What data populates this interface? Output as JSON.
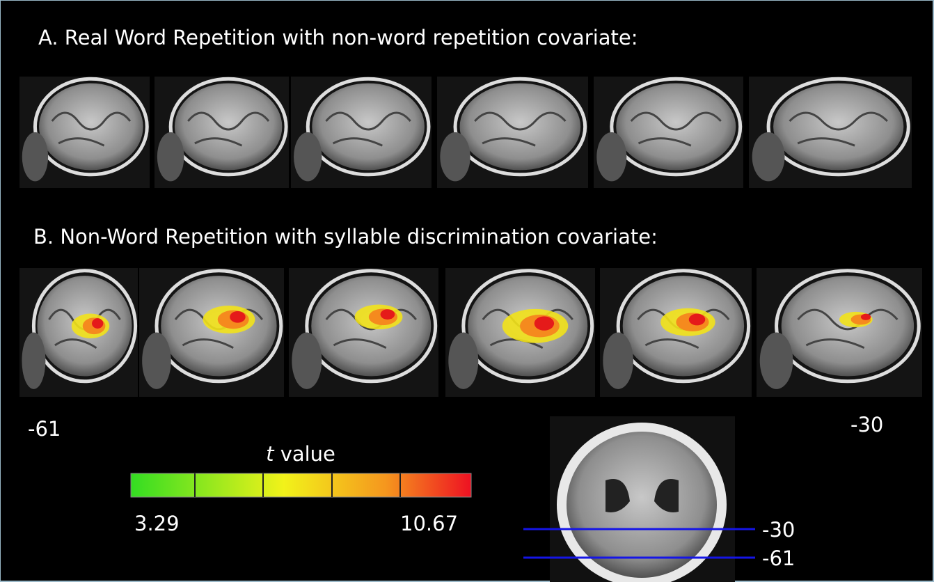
{
  "panel_a": {
    "title": "A.  Real Word Repetition with non-word repetition covariate:"
  },
  "panel_b": {
    "title": "B. Non-Word Repetition with syllable discrimination covariate:"
  },
  "slice_labels": {
    "left": "-61",
    "right": "-30"
  },
  "colorbar": {
    "label_italic": "t",
    "label": "value",
    "min": "3.29",
    "max": "10.67"
  },
  "axial_lines": [
    "-30",
    "-61"
  ]
}
